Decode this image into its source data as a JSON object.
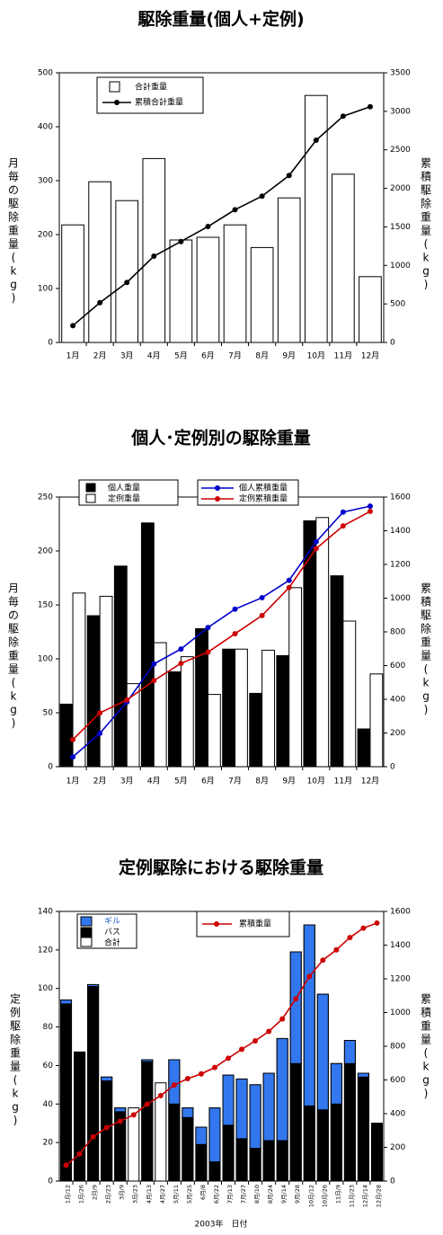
{
  "chart_data": [
    {
      "type": "bar",
      "title": "駆除重量(個人+定例)",
      "categories": [
        "1月",
        "2月",
        "3月",
        "4月",
        "5月",
        "6月",
        "7月",
        "8月",
        "9月",
        "10月",
        "11月",
        "12月"
      ],
      "ylabel": "月毎の駆除重量(kg)",
      "y2label": "累積駆除重量(kg)",
      "ylim": [
        0,
        500
      ],
      "y2lim": [
        0,
        3500
      ],
      "yticks": [
        "0",
        "100",
        "200",
        "300",
        "400",
        "500"
      ],
      "y2ticks": [
        "0",
        "500",
        "1000",
        "1500",
        "2000",
        "2500",
        "3000",
        "3500"
      ],
      "legend_placement": "top-left",
      "series": [
        {
          "name": "合計重量",
          "kind": "bar",
          "color": "#ffffff",
          "values": [
            218,
            298,
            263,
            341,
            190,
            195,
            218,
            176,
            268,
            458,
            312,
            122
          ]
        },
        {
          "name": "累積合計重量",
          "kind": "line",
          "axis": "right",
          "color": "#000000",
          "values": [
            218,
            516,
            779,
            1120,
            1310,
            1505,
            1723,
            1899,
            2167,
            2625,
            2937,
            3059
          ]
        }
      ]
    },
    {
      "type": "bar",
      "title": "個人･定例別の駆除重量",
      "categories": [
        "1月",
        "2月",
        "3月",
        "4月",
        "5月",
        "6月",
        "7月",
        "8月",
        "9月",
        "10月",
        "11月",
        "12月"
      ],
      "ylabel": "月毎の駆除重量(kg)",
      "y2label": "累積駆除重量(kg)",
      "ylim": [
        0,
        250
      ],
      "y2lim": [
        0,
        1600
      ],
      "yticks": [
        "0",
        "50",
        "100",
        "150",
        "200",
        "250"
      ],
      "y2ticks": [
        "0",
        "200",
        "400",
        "600",
        "800",
        "1000",
        "1200",
        "1400",
        "1600"
      ],
      "legend_placement": "top-left",
      "series": [
        {
          "name": "個人重量",
          "kind": "bar",
          "color": "#000000",
          "values": [
            58,
            140,
            186,
            226,
            88,
            128,
            109,
            68,
            103,
            228,
            177,
            35
          ]
        },
        {
          "name": "定例重量",
          "kind": "bar",
          "color": "#ffffff",
          "values": [
            161,
            158,
            77,
            115,
            102,
            67,
            109,
            108,
            166,
            231,
            135,
            86
          ]
        },
        {
          "name": "個人累積重量",
          "kind": "line",
          "axis": "right",
          "color": "#0000cc",
          "values": [
            58,
            198,
            384,
            610,
            698,
            826,
            935,
            1003,
            1106,
            1334,
            1511,
            1546
          ]
        },
        {
          "name": "定例累積重量",
          "kind": "line",
          "axis": "right",
          "color": "#cc0000",
          "values": [
            161,
            319,
            396,
            511,
            613,
            680,
            789,
            897,
            1063,
            1294,
            1429,
            1515
          ]
        }
      ]
    },
    {
      "type": "bar",
      "title": "定例駆除における駆除重量",
      "categories": [
        "1月/12",
        "1月/26",
        "2月/9",
        "2月/23",
        "3月/9",
        "3月/23",
        "4月/13",
        "4月/27",
        "5月/11",
        "5月/25",
        "6月/8",
        "6月/22",
        "7月/13",
        "7月/27",
        "8月/10",
        "8月/24",
        "9月/14",
        "9月/28",
        "10月/12",
        "10月/26",
        "11月/9",
        "11月/23",
        "12月/14",
        "12月/28"
      ],
      "xlabel": "2003年　日付",
      "ylabel": "定例駆除重量(kg)",
      "y2label": "累積重量(kg)",
      "ylim": [
        0,
        140
      ],
      "y2lim": [
        0,
        1600
      ],
      "yticks": [
        "0",
        "20",
        "40",
        "60",
        "80",
        "100",
        "120",
        "140"
      ],
      "y2ticks": [
        "0",
        "200",
        "400",
        "600",
        "800",
        "1000",
        "1200",
        "1400",
        "1600"
      ],
      "legend_placement": "top-left",
      "series": [
        {
          "name": "ギル",
          "kind": "stacked",
          "color": "#3377ee",
          "values": [
            2,
            0,
            1,
            2,
            2,
            0,
            1,
            0,
            23,
            5,
            9,
            28,
            26,
            31,
            33,
            35,
            53,
            58,
            94,
            60,
            21,
            12,
            2,
            0
          ]
        },
        {
          "name": "バス",
          "kind": "stacked",
          "color": "#000000",
          "values": [
            92,
            67,
            101,
            52,
            36,
            0,
            62,
            0,
            40,
            33,
            19,
            10,
            29,
            22,
            17,
            21,
            21,
            61,
            39,
            37,
            40,
            61,
            54,
            30
          ]
        },
        {
          "name": "合計",
          "kind": "stacked-outline",
          "color": "#ffffff",
          "values": [
            94,
            67,
            102,
            54,
            38,
            38,
            63,
            51,
            63,
            38,
            28,
            38,
            55,
            53,
            50,
            56,
            74,
            119,
            133,
            97,
            61,
            73,
            56,
            30
          ]
        },
        {
          "name": "累積重量",
          "kind": "line",
          "axis": "right",
          "color": "#cc0000",
          "values": [
            94,
            161,
            263,
            317,
            355,
            393,
            456,
            507,
            570,
            608,
            636,
            674,
            729,
            782,
            832,
            888,
            962,
            1081,
            1214,
            1311,
            1372,
            1445,
            1501,
            1531
          ]
        }
      ]
    }
  ]
}
